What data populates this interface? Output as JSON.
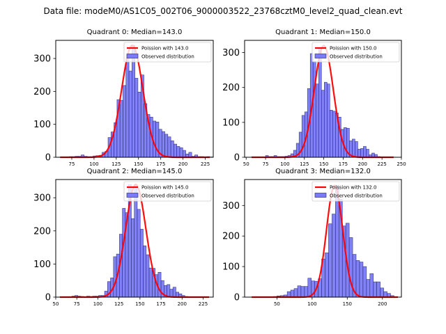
{
  "suptitle": "Data file: modeM0/AS1C05_002T06_9000003522_23768cztM0_level2_quad_clean.evt",
  "colors": {
    "bar_fill": "#7b7bf7",
    "bar_edge": "#1a1a66",
    "curve": "#ff0000",
    "axes": "#000000"
  },
  "chart_data": [
    {
      "type": "bar",
      "title": "Quadrant 0: Median=143.0",
      "legend": [
        "Poission with 143.0",
        "Observed distribution"
      ],
      "legend_position": "top-right",
      "xlim": [
        57,
        234
      ],
      "ylim": [
        0,
        355
      ],
      "xticks": [
        75,
        100,
        125,
        150,
        175,
        200,
        225
      ],
      "yticks": [
        0,
        100,
        200,
        300
      ],
      "bin_start": 62,
      "bin_width": 3.36,
      "values": [
        1,
        1,
        1,
        2,
        2,
        3,
        3,
        7,
        3,
        2,
        2,
        4,
        5,
        6,
        15,
        18,
        60,
        77,
        105,
        175,
        173,
        218,
        300,
        262,
        340,
        240,
        198,
        250,
        163,
        130,
        122,
        110,
        107,
        85,
        78,
        70,
        62,
        50,
        40,
        33,
        29,
        21,
        10,
        15,
        3,
        7,
        2,
        2,
        1,
        2,
        1
      ],
      "poisson_mean": 143.0,
      "poisson_peak": 340,
      "x_range": [
        62,
        230
      ]
    },
    {
      "type": "bar",
      "title": "Quadrant 1: Median=150.0",
      "legend": [
        "Poission with 150.0",
        "Observed distribution"
      ],
      "legend_position": "top-right",
      "xlim": [
        48,
        250
      ],
      "ylim": [
        0,
        335
      ],
      "xticks": [
        50,
        75,
        100,
        125,
        150,
        175,
        200,
        225,
        250
      ],
      "yticks": [
        0,
        100,
        200,
        300
      ],
      "bin_start": 57,
      "bin_width": 3.6,
      "values": [
        1,
        1,
        1,
        1,
        1,
        5,
        2,
        2,
        5,
        2,
        2,
        2,
        3,
        5,
        10,
        20,
        40,
        72,
        120,
        130,
        197,
        297,
        275,
        210,
        313,
        192,
        215,
        210,
        135,
        132,
        127,
        115,
        80,
        85,
        83,
        47,
        52,
        45,
        23,
        25,
        31,
        23,
        7,
        12,
        8,
        2,
        1,
        1,
        1,
        1
      ],
      "poisson_mean": 150.0,
      "poisson_peak": 320,
      "x_range": [
        57,
        240
      ]
    },
    {
      "type": "bar",
      "title": "Quadrant 2: Median=145.0",
      "legend": [
        "Poission with 145.0",
        "Observed distribution"
      ],
      "legend_position": "top-right",
      "xlim": [
        50,
        237
      ],
      "ylim": [
        0,
        355
      ],
      "xticks": [
        50,
        75,
        100,
        125,
        150,
        175,
        200,
        225
      ],
      "yticks": [
        0,
        100,
        200,
        300
      ],
      "bin_start": 55,
      "bin_width": 3.53,
      "values": [
        1,
        1,
        1,
        1,
        3,
        5,
        3,
        2,
        1,
        3,
        2,
        3,
        3,
        5,
        5,
        18,
        47,
        58,
        122,
        130,
        190,
        268,
        255,
        340,
        237,
        340,
        265,
        205,
        155,
        128,
        88,
        87,
        68,
        75,
        50,
        35,
        38,
        24,
        30,
        15,
        10,
        5,
        2,
        1,
        1,
        1,
        1,
        1,
        1,
        1
      ],
      "poisson_mean": 145.0,
      "poisson_peak": 340,
      "x_range": [
        55,
        232
      ]
    },
    {
      "type": "bar",
      "title": "Quadrant 3: Median=132.0",
      "legend": [
        "Poission with 132.0",
        "Observed distribution"
      ],
      "legend_position": "top-right",
      "xlim": [
        4,
        227
      ],
      "ylim": [
        0,
        385
      ],
      "xticks": [
        50,
        100,
        150,
        200
      ],
      "yticks": [
        0,
        100,
        200,
        300
      ],
      "bin_start": 45,
      "bin_width": 4.9,
      "values": [
        2,
        4,
        5,
        7,
        18,
        23,
        28,
        37,
        35,
        35,
        62,
        53,
        52,
        60,
        125,
        145,
        240,
        272,
        365,
        320,
        233,
        242,
        195,
        140,
        120,
        115,
        100,
        58,
        77,
        50,
        50,
        30,
        18,
        12,
        5,
        1
      ],
      "poisson_mean": 132.0,
      "poisson_peak": 365,
      "x_range": [
        14,
        222
      ]
    }
  ]
}
